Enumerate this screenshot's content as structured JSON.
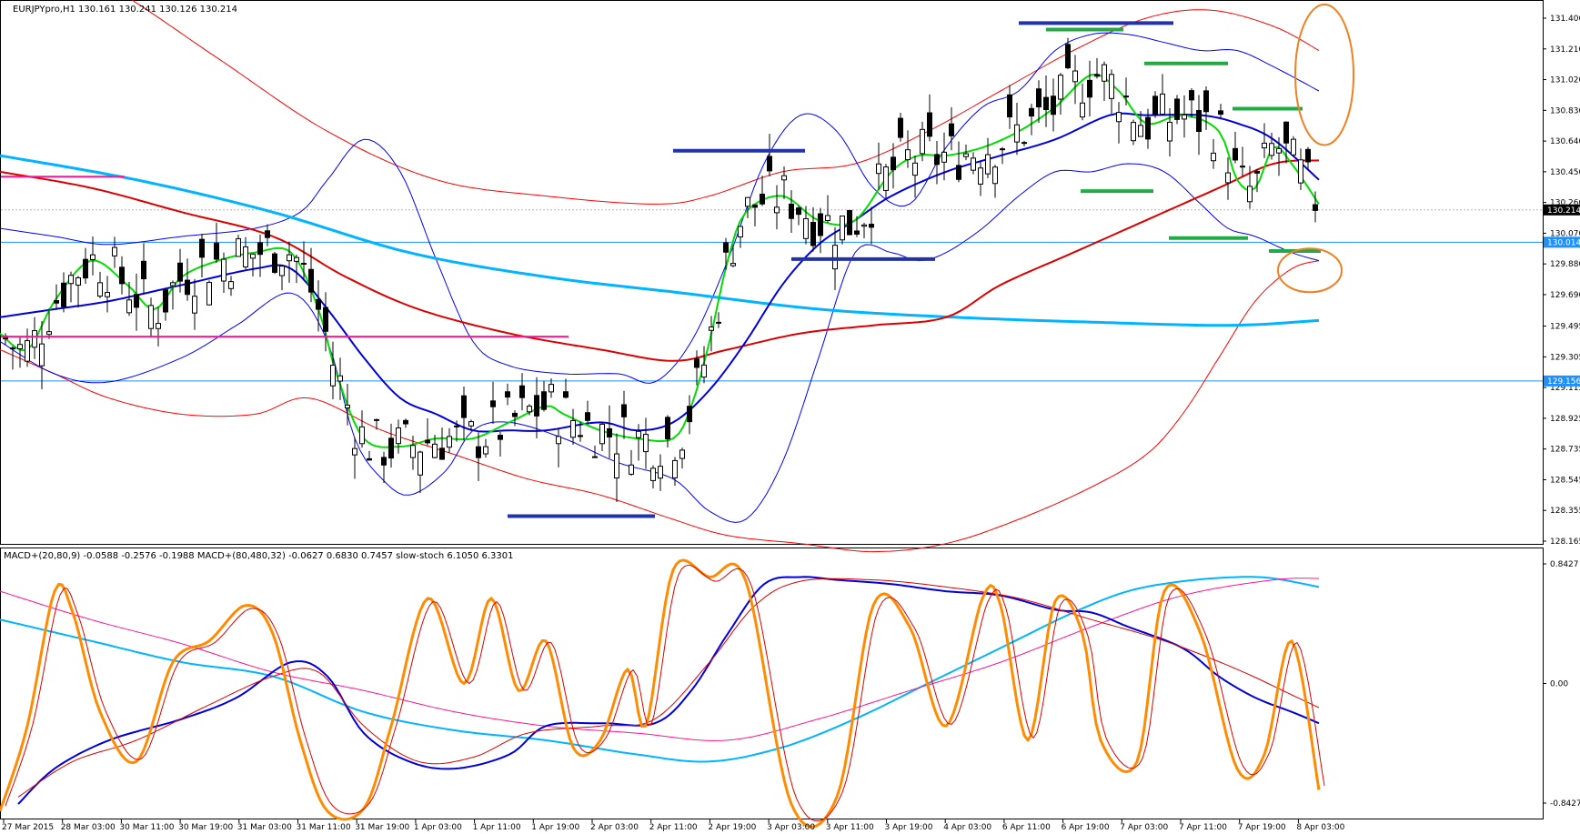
{
  "chart_data": {
    "type": "candlestick",
    "symbol_header": "EURJPYpro,H1  130.161 130.241 130.126 130.214",
    "indicator_header": "MACD+(20,80,9) -0.0588 -0.2576 -0.1988  MACD+(80,480,32) -0.0627 0.6830 0.7457  slow-stoch 6.1050 6.3301",
    "price_axis": {
      "ticks": [
        "131.400",
        "131.210",
        "131.020",
        "130.830",
        "130.640",
        "130.450",
        "130.260",
        "130.070",
        "129.880",
        "129.690",
        "129.495",
        "129.305",
        "129.115",
        "128.925",
        "128.735",
        "128.545",
        "128.355",
        "128.165"
      ],
      "range": [
        128.165,
        131.4
      ]
    },
    "indicator_axis": {
      "ticks": [
        "0.8427",
        "0.00",
        "-0.8427"
      ],
      "range": [
        -0.8427,
        0.8427
      ]
    },
    "time_axis": [
      "27 Mar 2015",
      "28 Mar 03:00",
      "30 Mar 11:00",
      "30 Mar 19:00",
      "31 Mar 03:00",
      "31 Mar 11:00",
      "31 Mar 19:00",
      "1 Apr 03:00",
      "1 Apr 11:00",
      "1 Apr 19:00",
      "2 Apr 03:00",
      "2 Apr 11:00",
      "2 Apr 19:00",
      "3 Apr 03:00",
      "3 Apr 11:00",
      "3 Apr 19:00",
      "4 Apr 03:00",
      "6 Apr 11:00",
      "6 Apr 19:00",
      "7 Apr 03:00",
      "7 Apr 11:00",
      "7 Apr 19:00",
      "8 Apr 03:00"
    ],
    "price_labels": [
      {
        "text": "130.214",
        "value": 130.214,
        "bg": "#000000",
        "fg": "#ffffff"
      },
      {
        "text": "130.014",
        "value": 130.014,
        "bg": "#1e90ff",
        "fg": "#ffffff"
      },
      {
        "text": "129.156",
        "value": 129.156,
        "bg": "#1e90ff",
        "fg": "#ffffff"
      }
    ],
    "horizontal_lines": [
      {
        "value": 130.014,
        "color": "#1e90ff"
      },
      {
        "value": 129.156,
        "color": "#1e90ff"
      },
      {
        "value": 130.214,
        "color": "#b4b4b4",
        "dotted": true
      }
    ],
    "colors": {
      "bb_outer": "#ff0000",
      "bb_inner": "#0000ff",
      "ma_fast": "#00dd00",
      "ma_mid": "#0000dd",
      "ma_slow": "#dd0000",
      "ma_long": "#00b4ff",
      "pink": "#ff1493",
      "support": "#2233aa",
      "resistance": "#22aa44",
      "annotation": "#f08020",
      "stoch": "#ff8c00"
    }
  }
}
